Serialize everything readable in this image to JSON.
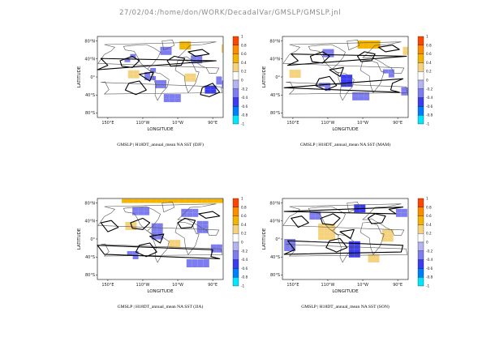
{
  "header": {
    "path_title": "27/02/04:/home/don/WORK/DecadalVar/GMSLP/GMSLP.jnl"
  },
  "colors": {
    "levels": [
      -1,
      -0.8,
      -0.6,
      -0.4,
      -0.2,
      0,
      0.2,
      0.4,
      0.6,
      0.8,
      1
    ],
    "fills": [
      "#00e6ff",
      "#007dff",
      "#3c3cf5",
      "#7d7df0",
      "#b4b4f5",
      "#ffffff",
      "#f5d27d",
      "#f5b400",
      "#ff8c00",
      "#ff4600"
    ],
    "contour": "#000000",
    "coast": "#555555"
  },
  "chart_data": [
    {
      "type": "heatmap",
      "caption": "GMSLP | H18DT_annual_mean NA SST (DJF)",
      "xlabel": "LONGITUDE",
      "ylabel": "LATITUDE",
      "xticks": [
        "150°E",
        "110°W",
        "10°W",
        "90°E"
      ],
      "yticks": [
        "80°N",
        "40°N",
        "0°",
        "40°S",
        "80°S"
      ],
      "colorbar_labels": [
        "1",
        "0.8",
        "0.6",
        "0.4",
        "0.2",
        "0",
        "-0.2",
        "-0.4",
        "-0.6",
        "-0.8",
        "-1"
      ],
      "patches": [
        {
          "lon": 10,
          "lat": 72,
          "w": 30,
          "h": 14,
          "v": 0.45
        },
        {
          "lon": -50,
          "lat": 60,
          "w": 20,
          "h": 14,
          "v": -0.3
        },
        {
          "lon": 130,
          "lat": 65,
          "w": 30,
          "h": 14,
          "v": 0.35
        },
        {
          "lon": -150,
          "lat": 45,
          "w": 25,
          "h": 12,
          "v": -0.25
        },
        {
          "lon": 40,
          "lat": 40,
          "w": 25,
          "h": 16,
          "v": -0.4
        },
        {
          "lon": -140,
          "lat": 8,
          "w": 25,
          "h": 14,
          "v": 0.35
        },
        {
          "lon": -90,
          "lat": 10,
          "w": 30,
          "h": 20,
          "v": -0.25
        },
        {
          "lon": -60,
          "lat": -15,
          "w": 30,
          "h": 16,
          "v": -0.35
        },
        {
          "lon": 120,
          "lat": -10,
          "w": 40,
          "h": 22,
          "v": -0.25
        },
        {
          "lon": -30,
          "lat": -45,
          "w": 40,
          "h": 14,
          "v": -0.35
        },
        {
          "lon": 20,
          "lat": 0,
          "w": 20,
          "h": 15,
          "v": 0.3
        },
        {
          "lon": 80,
          "lat": -25,
          "w": 25,
          "h": 12,
          "v": -0.45
        }
      ]
    },
    {
      "type": "heatmap",
      "caption": "GMSLP | H18DT_annual_mean NA SST (MAM)",
      "xlabel": "LONGITUDE",
      "ylabel": "LATITUDE",
      "xticks": [
        "150°E",
        "110°W",
        "10°W",
        "90°E"
      ],
      "yticks": [
        "80°N",
        "40°N",
        "0°",
        "40°S",
        "80°S"
      ],
      "colorbar_labels": [
        "1",
        "0.8",
        "0.6",
        "0.4",
        "0.2",
        "0",
        "-0.2",
        "-0.4",
        "-0.6",
        "-0.8",
        "-1"
      ],
      "patches": [
        {
          "lon": 0,
          "lat": 76,
          "w": 50,
          "h": 10,
          "v": 0.55
        },
        {
          "lon": -110,
          "lat": 55,
          "w": 30,
          "h": 14,
          "v": -0.3
        },
        {
          "lon": 120,
          "lat": 60,
          "w": 30,
          "h": 14,
          "v": 0.35
        },
        {
          "lon": -60,
          "lat": -5,
          "w": 25,
          "h": 20,
          "v": -0.5
        },
        {
          "lon": 60,
          "lat": 10,
          "w": 25,
          "h": 14,
          "v": -0.25
        },
        {
          "lon": 120,
          "lat": -30,
          "w": 40,
          "h": 14,
          "v": -0.35
        },
        {
          "lon": -20,
          "lat": -40,
          "w": 40,
          "h": 12,
          "v": -0.3
        },
        {
          "lon": -120,
          "lat": -20,
          "w": 30,
          "h": 14,
          "v": -0.25
        },
        {
          "lon": 150,
          "lat": 10,
          "w": 20,
          "h": 12,
          "v": 0.3
        }
      ]
    },
    {
      "type": "heatmap",
      "caption": "GMSLP | H18DT_annual_mean NA SST (JJA)",
      "xlabel": "LONGITUDE",
      "ylabel": "LATITUDE",
      "xticks": [
        "150°E",
        "110°W",
        "10°W",
        "90°E"
      ],
      "yticks": [
        "80°N",
        "40°N",
        "0°",
        "40°S",
        "80°S"
      ],
      "colorbar_labels": [
        "1",
        "0.8",
        "0.6",
        "0.4",
        "0.2",
        "0",
        "-0.2",
        "-0.4",
        "-0.6",
        "-0.8",
        "-1"
      ],
      "patches": [
        {
          "lon": 0,
          "lat": 86,
          "w": 340,
          "h": 6,
          "v": 0.45
        },
        {
          "lon": -120,
          "lat": 65,
          "w": 40,
          "h": 12,
          "v": -0.35
        },
        {
          "lon": 20,
          "lat": 60,
          "w": 40,
          "h": 14,
          "v": -0.4
        },
        {
          "lon": -150,
          "lat": 30,
          "w": 20,
          "h": 16,
          "v": 0.35
        },
        {
          "lon": -70,
          "lat": 20,
          "w": 30,
          "h": 30,
          "v": -0.3
        },
        {
          "lon": 60,
          "lat": 30,
          "w": 30,
          "h": 20,
          "v": -0.3
        },
        {
          "lon": -20,
          "lat": -10,
          "w": 30,
          "h": 16,
          "v": 0.3
        },
        {
          "lon": -140,
          "lat": -35,
          "w": 30,
          "h": 16,
          "v": -0.25
        },
        {
          "lon": 100,
          "lat": -20,
          "w": 30,
          "h": 16,
          "v": -0.4
        },
        {
          "lon": 40,
          "lat": -50,
          "w": 50,
          "h": 10,
          "v": -0.3
        }
      ]
    },
    {
      "type": "heatmap",
      "caption": "GMSLP | H18DT_annual_mean NA SST (SON)",
      "xlabel": "LONGITUDE",
      "ylabel": "LATITUDE",
      "xticks": [
        "150°E",
        "110°W",
        "10°W",
        "90°E"
      ],
      "yticks": [
        "80°N",
        "40°N",
        "0°",
        "40°S",
        "80°S"
      ],
      "colorbar_labels": [
        "1",
        "0.8",
        "0.6",
        "0.4",
        "0.2",
        "0",
        "-0.2",
        "-0.4",
        "-0.6",
        "-0.8",
        "-1"
      ],
      "patches": [
        {
          "lon": -20,
          "lat": 70,
          "w": 30,
          "h": 14,
          "v": -0.45
        },
        {
          "lon": 100,
          "lat": 60,
          "w": 30,
          "h": 14,
          "v": -0.3
        },
        {
          "lon": -120,
          "lat": 20,
          "w": 35,
          "h": 28,
          "v": 0.35
        },
        {
          "lon": -40,
          "lat": -20,
          "w": 20,
          "h": 30,
          "v": -0.55
        },
        {
          "lon": 60,
          "lat": 10,
          "w": 30,
          "h": 22,
          "v": 0.3
        },
        {
          "lon": 140,
          "lat": -10,
          "w": 30,
          "h": 20,
          "v": -0.35
        },
        {
          "lon": -150,
          "lat": 55,
          "w": 25,
          "h": 12,
          "v": -0.3
        },
        {
          "lon": 20,
          "lat": -40,
          "w": 30,
          "h": 12,
          "v": 0.3
        }
      ]
    }
  ]
}
